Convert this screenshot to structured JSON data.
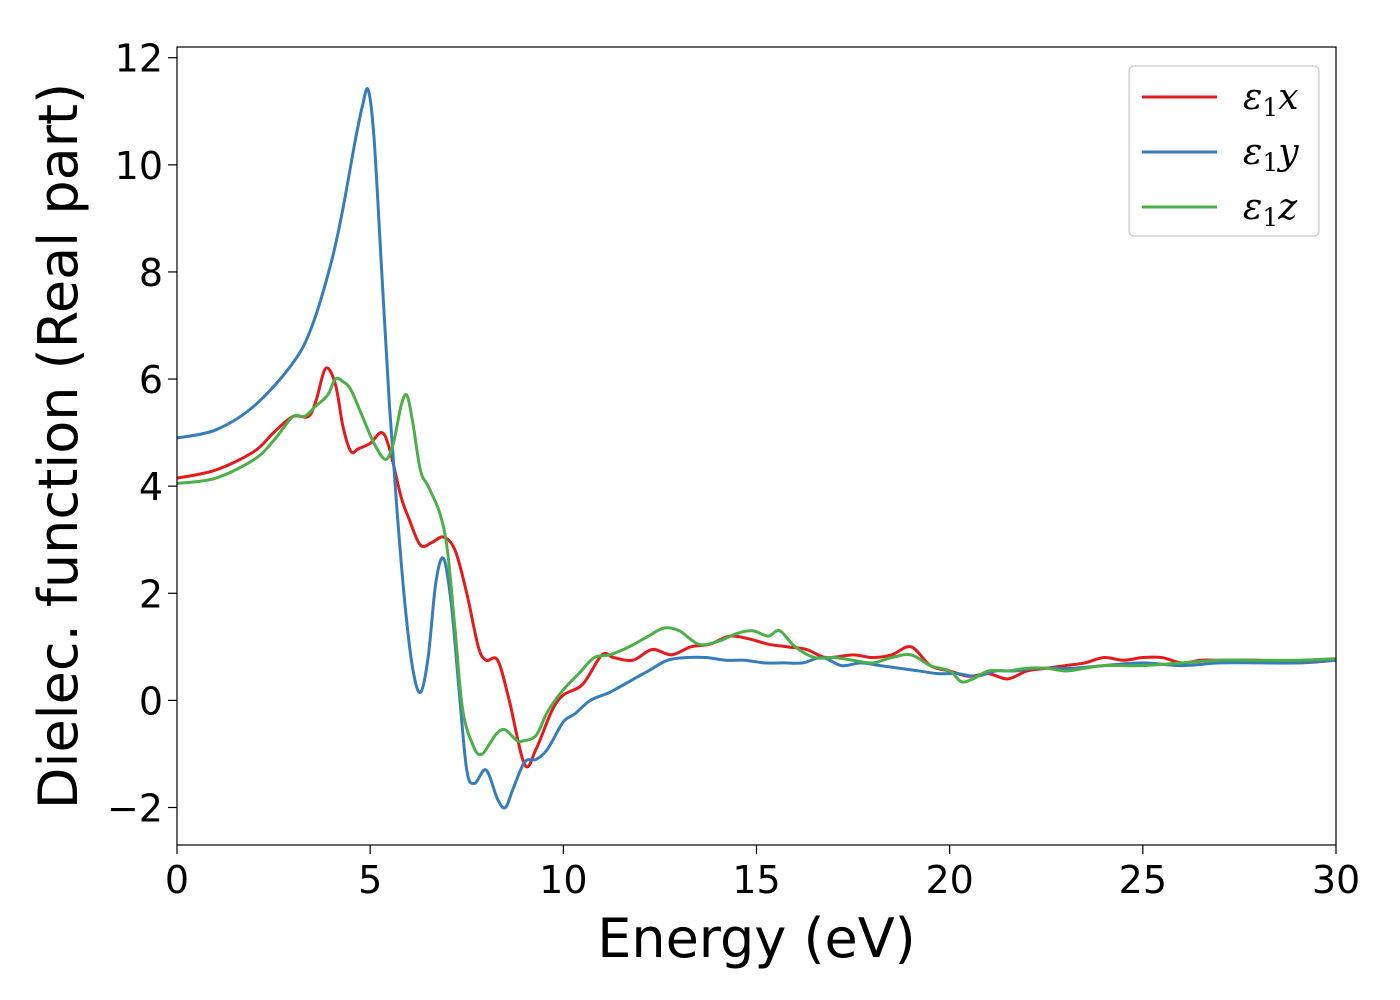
{
  "chart_data": {
    "type": "line",
    "title": "",
    "xlabel": "Energy (eV)",
    "ylabel": "Dielec. function (Real part)",
    "xlim": [
      0,
      30
    ],
    "ylim": [
      -2.7,
      12.2
    ],
    "xticks": [
      0,
      5,
      10,
      15,
      20,
      25,
      30
    ],
    "yticks": [
      -2,
      0,
      2,
      4,
      6,
      8,
      10,
      12
    ],
    "ytick_labels": [
      "−2",
      "0",
      "2",
      "4",
      "6",
      "8",
      "10",
      "12"
    ],
    "grid": false,
    "legend_position": "top-right",
    "series": [
      {
        "name": "ε1x",
        "legend_base": "ε",
        "legend_sub": "1",
        "legend_var": "x",
        "color": "#e41a1c",
        "x": [
          0,
          1,
          2,
          2.5,
          3,
          3.4,
          3.6,
          3.85,
          4.1,
          4.3,
          4.5,
          4.7,
          5.0,
          5.3,
          5.5,
          5.8,
          6.0,
          6.3,
          6.6,
          6.9,
          7.2,
          7.5,
          7.8,
          8.0,
          8.3,
          8.6,
          9.0,
          9.3,
          9.7,
          10.0,
          10.5,
          11.0,
          11.3,
          11.8,
          12.3,
          12.8,
          13.3,
          13.8,
          14.3,
          14.8,
          15.3,
          15.8,
          16.3,
          16.8,
          17.5,
          18.0,
          18.5,
          19.0,
          19.5,
          20.0,
          20.5,
          21.0,
          21.5,
          22.0,
          22.5,
          23.0,
          23.5,
          24.0,
          24.5,
          25.0,
          25.5,
          26.0,
          26.5,
          27.0,
          28.0,
          29.0,
          30.0
        ],
        "y": [
          4.15,
          4.3,
          4.65,
          5.0,
          5.3,
          5.3,
          5.6,
          6.2,
          5.9,
          5.1,
          4.65,
          4.7,
          4.8,
          5.0,
          4.7,
          3.8,
          3.4,
          2.9,
          2.95,
          3.05,
          2.8,
          2.0,
          1.0,
          0.75,
          0.75,
          0.0,
          -1.2,
          -0.9,
          -0.2,
          0.1,
          0.3,
          0.85,
          0.8,
          0.75,
          0.95,
          0.85,
          1.0,
          1.05,
          1.2,
          1.15,
          1.05,
          1.0,
          0.95,
          0.8,
          0.85,
          0.8,
          0.85,
          1.0,
          0.65,
          0.55,
          0.45,
          0.5,
          0.4,
          0.55,
          0.6,
          0.65,
          0.7,
          0.8,
          0.75,
          0.8,
          0.8,
          0.7,
          0.75,
          0.75,
          0.75,
          0.7,
          0.75
        ]
      },
      {
        "name": "ε1y",
        "legend_base": "ε",
        "legend_sub": "1",
        "legend_var": "y",
        "color": "#377eb8",
        "x": [
          0,
          1,
          2,
          3,
          3.5,
          4.0,
          4.3,
          4.6,
          4.8,
          4.95,
          5.1,
          5.3,
          5.5,
          5.7,
          5.9,
          6.1,
          6.3,
          6.5,
          6.7,
          6.9,
          7.1,
          7.3,
          7.5,
          7.7,
          8.0,
          8.3,
          8.5,
          8.7,
          9.0,
          9.3,
          9.6,
          10.0,
          10.3,
          10.7,
          11.2,
          11.7,
          12.2,
          12.7,
          13.2,
          13.7,
          14.2,
          14.7,
          15.2,
          15.7,
          16.2,
          16.7,
          17.2,
          17.7,
          18.2,
          18.7,
          19.2,
          19.7,
          20.2,
          20.7,
          21.2,
          21.7,
          22.2,
          22.7,
          23.2,
          24.0,
          25.0,
          26.0,
          27.0,
          28.0,
          29.0,
          30.0
        ],
        "y": [
          4.9,
          5.05,
          5.5,
          6.3,
          7.0,
          8.2,
          9.2,
          10.4,
          11.1,
          11.4,
          10.5,
          8.0,
          5.5,
          3.5,
          1.8,
          0.6,
          0.15,
          0.8,
          2.2,
          2.65,
          1.8,
          0.2,
          -1.3,
          -1.55,
          -1.3,
          -1.85,
          -2.0,
          -1.65,
          -1.15,
          -1.1,
          -0.9,
          -0.4,
          -0.25,
          0.0,
          0.15,
          0.35,
          0.55,
          0.75,
          0.8,
          0.8,
          0.75,
          0.75,
          0.7,
          0.7,
          0.7,
          0.8,
          0.65,
          0.7,
          0.65,
          0.6,
          0.55,
          0.5,
          0.5,
          0.45,
          0.55,
          0.55,
          0.6,
          0.6,
          0.6,
          0.65,
          0.7,
          0.65,
          0.7,
          0.7,
          0.7,
          0.75
        ]
      },
      {
        "name": "ε1z",
        "legend_base": "ε",
        "legend_sub": "1",
        "legend_var": "z",
        "color": "#4daf4a",
        "x": [
          0,
          1,
          2,
          2.5,
          3.0,
          3.3,
          3.6,
          3.9,
          4.1,
          4.3,
          4.5,
          4.8,
          5.1,
          5.4,
          5.6,
          5.8,
          5.95,
          6.1,
          6.3,
          6.5,
          6.8,
          7.0,
          7.2,
          7.4,
          7.7,
          7.9,
          8.1,
          8.3,
          8.5,
          8.8,
          9.0,
          9.3,
          9.6,
          10.0,
          10.4,
          10.8,
          11.2,
          11.7,
          12.2,
          12.6,
          13.0,
          13.5,
          14.0,
          14.5,
          14.9,
          15.3,
          15.6,
          16.0,
          16.5,
          17.0,
          17.5,
          18.0,
          18.5,
          19.0,
          19.5,
          20.0,
          20.3,
          20.6,
          21.0,
          21.5,
          22.0,
          22.5,
          23.0,
          23.5,
          24.0,
          25.0,
          26.0,
          27.0,
          28.0,
          29.0,
          30.0
        ],
        "y": [
          4.05,
          4.15,
          4.5,
          4.85,
          5.3,
          5.3,
          5.5,
          5.7,
          6.0,
          5.95,
          5.8,
          5.3,
          4.8,
          4.5,
          4.8,
          5.5,
          5.7,
          5.2,
          4.3,
          4.0,
          3.5,
          2.8,
          1.3,
          -0.2,
          -0.9,
          -1.0,
          -0.8,
          -0.6,
          -0.55,
          -0.75,
          -0.75,
          -0.65,
          -0.2,
          0.2,
          0.5,
          0.8,
          0.85,
          1.0,
          1.2,
          1.35,
          1.3,
          1.05,
          1.1,
          1.25,
          1.3,
          1.2,
          1.3,
          1.0,
          0.8,
          0.8,
          0.75,
          0.7,
          0.8,
          0.85,
          0.65,
          0.55,
          0.35,
          0.4,
          0.55,
          0.55,
          0.6,
          0.6,
          0.55,
          0.6,
          0.65,
          0.65,
          0.7,
          0.75,
          0.75,
          0.75,
          0.78
        ]
      }
    ]
  }
}
